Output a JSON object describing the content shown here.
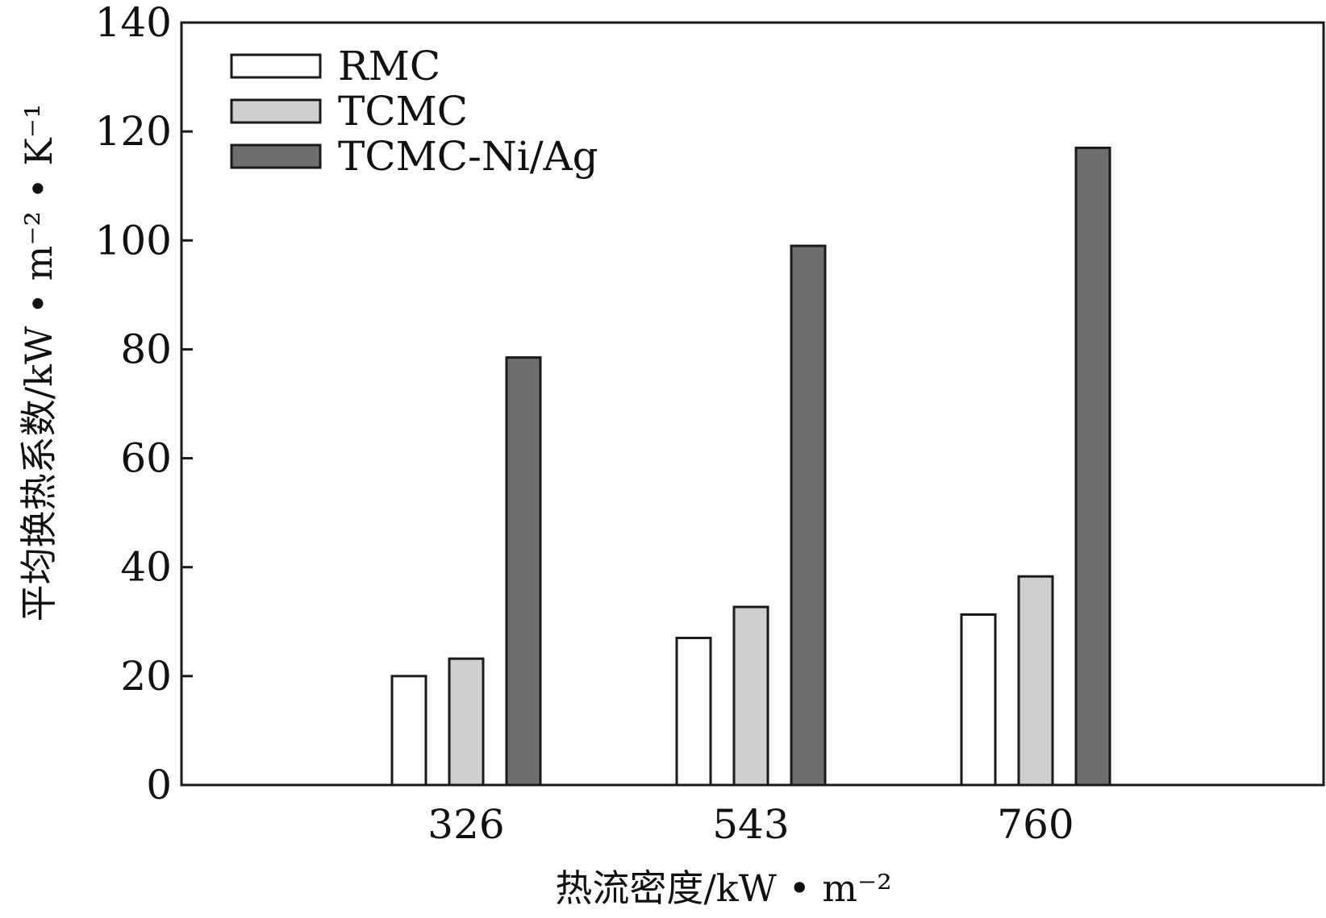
{
  "chart_data": {
    "type": "bar",
    "categories": [
      "326",
      "543",
      "760"
    ],
    "series": [
      {
        "name": "RMC",
        "values": [
          20,
          27,
          31.3
        ],
        "color": "#ffffff"
      },
      {
        "name": "TCMC",
        "values": [
          23.2,
          32.7,
          38.3
        ],
        "color": "#cfcfcf"
      },
      {
        "name": "TCMC-Ni/Ag",
        "values": [
          78.5,
          99,
          117
        ],
        "color": "#6e6e6e"
      }
    ],
    "xlabel": "热流密度/kW • m⁻²",
    "ylabel": "平均换热系数/kW • m⁻² • K⁻¹",
    "ylim": [
      0,
      140
    ],
    "yticks": [
      "0",
      "20",
      "40",
      "60",
      "80",
      "100",
      "120",
      "140"
    ],
    "grid": false,
    "legend_position": "top-left"
  }
}
